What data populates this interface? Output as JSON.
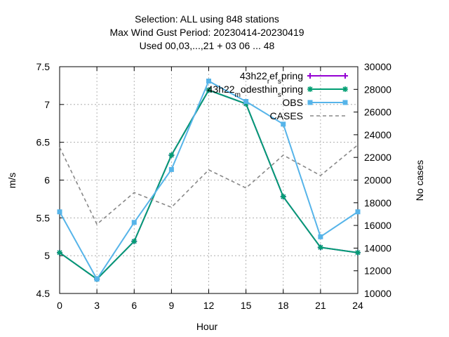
{
  "chart_data": {
    "type": "line",
    "title_lines": [
      "Selection: ALL using   848 stations",
      "Max Wind Gust   Period: 20230414-20230419",
      "Used  00,03,...,21  + 03 06 ... 48"
    ],
    "xlabel": "Hour",
    "ylabel": "m/s",
    "y2label": "No cases",
    "x": [
      0,
      3,
      6,
      9,
      12,
      15,
      18,
      21,
      24
    ],
    "xlim": [
      0,
      24
    ],
    "ylim": [
      4.5,
      7.5
    ],
    "y2lim": [
      10000,
      30000
    ],
    "xticks": [
      "0",
      "3",
      "6",
      "9",
      "12",
      "15",
      "18",
      "21",
      "24"
    ],
    "yticks": [
      "4.5",
      "5",
      "5.5",
      "6",
      "6.5",
      "7",
      "7.5"
    ],
    "y2ticks": [
      "10000",
      "12000",
      "14000",
      "16000",
      "18000",
      "20000",
      "22000",
      "24000",
      "26000",
      "28000",
      "30000"
    ],
    "grid": true,
    "legend_position": "top-right",
    "series": [
      {
        "name": "43h22_ref_spring",
        "legend_parts": [
          {
            "text": "43h22",
            "sub": false
          },
          {
            "text": "r",
            "sub": true
          },
          {
            "text": "ef",
            "sub": false
          },
          {
            "text": "s",
            "sub": true
          },
          {
            "text": "pring",
            "sub": false
          }
        ],
        "axis": "y1",
        "color": "#9400d3",
        "style": "solid",
        "marker": "plus",
        "values": [
          5.04,
          4.69,
          5.19,
          6.33,
          7.19,
          7.01,
          5.78,
          5.11,
          5.04
        ]
      },
      {
        "name": "43h22_modesthin_spring",
        "legend_parts": [
          {
            "text": "43h22",
            "sub": false
          },
          {
            "text": "m",
            "sub": true
          },
          {
            "text": "odesthin",
            "sub": false
          },
          {
            "text": "s",
            "sub": true
          },
          {
            "text": "pring",
            "sub": false
          }
        ],
        "axis": "y1",
        "color": "#009e73",
        "style": "solid",
        "marker": "star",
        "values": [
          5.04,
          4.69,
          5.19,
          6.33,
          7.19,
          7.01,
          5.78,
          5.11,
          5.04
        ]
      },
      {
        "name": "OBS",
        "legend_parts": [
          {
            "text": "OBS",
            "sub": false
          }
        ],
        "axis": "y1",
        "color": "#56b4e9",
        "style": "solid",
        "marker": "square",
        "values": [
          5.58,
          4.69,
          5.44,
          6.14,
          7.31,
          7.04,
          6.74,
          5.25,
          5.58
        ]
      },
      {
        "name": "CASES",
        "legend_parts": [
          {
            "text": "CASES",
            "sub": false
          }
        ],
        "axis": "y2",
        "color": "#888888",
        "style": "dashed",
        "marker": "none",
        "values": [
          22900,
          16100,
          18900,
          17600,
          20900,
          19300,
          22200,
          20400,
          23100
        ]
      }
    ]
  }
}
